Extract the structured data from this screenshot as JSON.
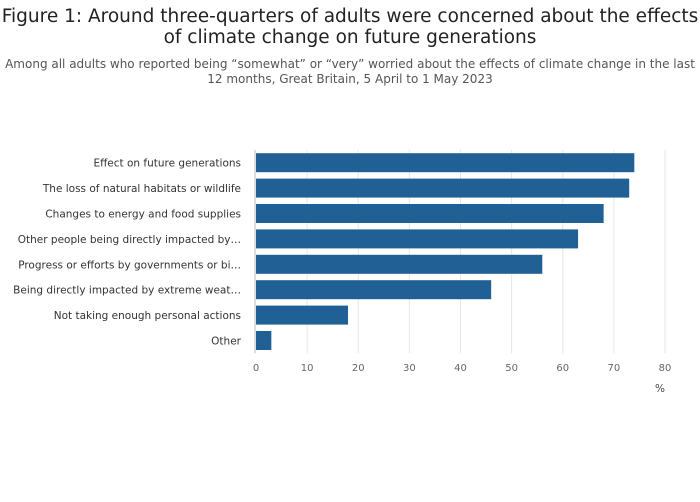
{
  "title_line1": "Figure 1: Around three-quarters of adults were concerned about the effects",
  "title_line2": "of climate change on future generations",
  "subtitle_line1": "Among all adults who reported being “somewhat” or “very” worried about the effects of climate change in the last",
  "subtitle_line2": "12 months, Great Britain, 5 April to 1 May 2023",
  "colors": {
    "bar": "#206095",
    "grid": "#e6e6e6",
    "axis": "#bbbbbb"
  },
  "chart_data": {
    "type": "bar",
    "orientation": "horizontal",
    "categories": [
      "Effect on future generations",
      "The loss of natural habitats or wildlife",
      "Changes to energy and food supplies",
      "Other people being directly impacted by…",
      "Progress or efforts by governments or bi…",
      "Being directly impacted by extreme weat…",
      "Not taking enough personal actions",
      "Other"
    ],
    "values": [
      74,
      73,
      68,
      63,
      56,
      46,
      18,
      3
    ],
    "xlim": [
      0,
      80
    ],
    "xticks": [
      0,
      10,
      20,
      30,
      40,
      50,
      60,
      70,
      80
    ],
    "xlabel": "%",
    "grid": true
  }
}
